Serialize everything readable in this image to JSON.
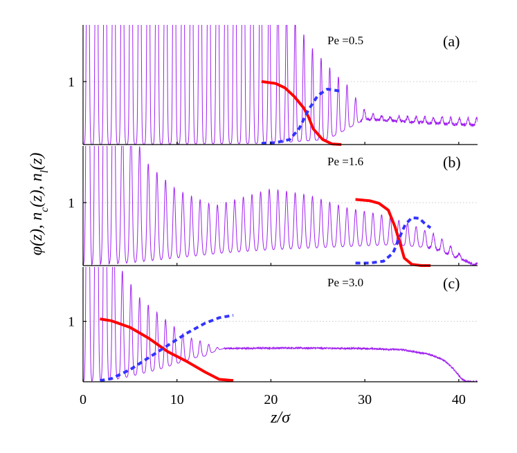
{
  "figure": {
    "ylabel": "φ(z),  n_c(z),  n_l(z)",
    "xlabel": "z/σ"
  },
  "colors": {
    "phi": "#a020f0",
    "nc": "#ff0000",
    "nl": "#3333ff"
  },
  "chart_data": [
    {
      "type": "line",
      "panel": "(a)",
      "annotation": "Pe =0.5",
      "xlim": [
        0,
        42
      ],
      "ylim": [
        0,
        1.9
      ],
      "yticks": [
        1
      ],
      "ytick_labels": [
        "1"
      ],
      "reference_line_y": 1,
      "series": [
        {
          "name": "phi(z)",
          "kind": "oscillatory_density",
          "period": 0.92,
          "width": 0.1,
          "peak_envelope": [
            [
              0,
              9
            ],
            [
              17,
              9
            ],
            [
              20,
              2.8
            ],
            [
              24,
              1.6
            ],
            [
              27,
              1.1
            ],
            [
              28.5,
              0.9
            ],
            [
              29.5,
              0.6
            ],
            [
              30.5,
              0.5
            ],
            [
              32,
              0.45
            ],
            [
              42,
              0.42
            ]
          ],
          "base_envelope": [
            [
              0,
              0
            ],
            [
              20,
              0.02
            ],
            [
              26,
              0.08
            ],
            [
              28.5,
              0.28
            ],
            [
              30,
              0.4
            ],
            [
              42,
              0.3
            ]
          ],
          "noise_start": 29.5,
          "noise_amp": 0.025
        },
        {
          "name": "n_c(z)",
          "style": "solid",
          "points": [
            [
              19,
              1.0
            ],
            [
              20.5,
              0.97
            ],
            [
              21.5,
              0.9
            ],
            [
              22.5,
              0.76
            ],
            [
              23.5,
              0.58
            ],
            [
              24,
              0.44
            ],
            [
              24.5,
              0.25
            ],
            [
              25.5,
              0.08
            ],
            [
              26.5,
              0.01
            ],
            [
              27.5,
              0.0
            ]
          ]
        },
        {
          "name": "n_l(z)",
          "style": "dashed",
          "points": [
            [
              19,
              0.02
            ],
            [
              20.5,
              0.03
            ],
            [
              22,
              0.08
            ],
            [
              23,
              0.25
            ],
            [
              24,
              0.55
            ],
            [
              25,
              0.78
            ],
            [
              26,
              0.88
            ],
            [
              26.5,
              0.87
            ],
            [
              27.3,
              0.85
            ]
          ]
        }
      ]
    },
    {
      "type": "line",
      "panel": "(b)",
      "annotation": "Pe =1.6",
      "xlim": [
        0,
        42
      ],
      "ylim": [
        0,
        1.9
      ],
      "yticks": [
        1
      ],
      "ytick_labels": [
        "1"
      ],
      "reference_line_y": 1,
      "series": [
        {
          "name": "phi(z)",
          "kind": "oscillatory_density",
          "period": 0.92,
          "width": 0.13,
          "peak_envelope": [
            [
              0,
              9
            ],
            [
              2,
              9
            ],
            [
              4,
              2.5
            ],
            [
              7,
              1.6
            ],
            [
              10,
              1.2
            ],
            [
              14,
              0.95
            ],
            [
              20,
              1.22
            ],
            [
              24,
              1.12
            ],
            [
              28,
              0.92
            ],
            [
              32,
              0.8
            ],
            [
              35,
              0.65
            ],
            [
              38,
              0.45
            ],
            [
              40,
              0.2
            ],
            [
              41,
              0.05
            ],
            [
              42,
              0.03
            ]
          ],
          "base_envelope": [
            [
              0,
              0
            ],
            [
              5,
              0.04
            ],
            [
              10,
              0.12
            ],
            [
              15,
              0.2
            ],
            [
              20,
              0.25
            ],
            [
              28,
              0.3
            ],
            [
              33,
              0.33
            ],
            [
              37,
              0.28
            ],
            [
              40,
              0.12
            ],
            [
              41.5,
              0.02
            ],
            [
              42,
              0.0
            ]
          ],
          "noise_start": 36.5,
          "noise_amp": 0.02
        },
        {
          "name": "n_c(z)",
          "style": "solid",
          "points": [
            [
              29,
              1.05
            ],
            [
              30.5,
              1.03
            ],
            [
              31.5,
              0.99
            ],
            [
              32.5,
              0.88
            ],
            [
              33.2,
              0.62
            ],
            [
              33.8,
              0.33
            ],
            [
              34.2,
              0.12
            ],
            [
              35,
              0.02
            ],
            [
              36,
              0.0
            ],
            [
              37,
              0.0
            ]
          ]
        },
        {
          "name": "n_l(z)",
          "style": "dashed",
          "points": [
            [
              29,
              0.04
            ],
            [
              30.5,
              0.04
            ],
            [
              32,
              0.07
            ],
            [
              33,
              0.2
            ],
            [
              33.7,
              0.45
            ],
            [
              34.3,
              0.65
            ],
            [
              35,
              0.76
            ],
            [
              35.8,
              0.75
            ],
            [
              36.5,
              0.65
            ],
            [
              37,
              0.6
            ]
          ]
        }
      ]
    },
    {
      "type": "line",
      "panel": "(c)",
      "annotation": "Pe =3.0",
      "xlim": [
        0,
        42
      ],
      "ylim": [
        0,
        1.9
      ],
      "yticks": [
        1
      ],
      "ytick_labels": [
        "1"
      ],
      "reference_line_y": 1,
      "series": [
        {
          "name": "phi(z)",
          "kind": "oscillatory_density",
          "period": 0.92,
          "width": 0.12,
          "peak_envelope": [
            [
              0,
              9
            ],
            [
              2,
              9
            ],
            [
              3.5,
              2.0
            ],
            [
              6,
              1.4
            ],
            [
              9,
              1.0
            ],
            [
              11,
              0.75
            ],
            [
              13,
              0.65
            ],
            [
              14.5,
              0.6
            ],
            [
              16,
              0.56
            ]
          ],
          "base_envelope": [
            [
              0,
              0
            ],
            [
              4,
              0.05
            ],
            [
              8,
              0.2
            ],
            [
              12,
              0.4
            ],
            [
              16,
              0.5
            ]
          ],
          "tail_profile": [
            [
              15,
              0.55
            ],
            [
              22,
              0.56
            ],
            [
              30,
              0.55
            ],
            [
              34,
              0.53
            ],
            [
              37,
              0.45
            ],
            [
              38.5,
              0.35
            ],
            [
              39.5,
              0.2
            ],
            [
              40.3,
              0.05
            ],
            [
              40.8,
              0.0
            ],
            [
              42,
              0.0
            ]
          ],
          "noise_start": 15,
          "noise_amp": 0.015
        },
        {
          "name": "n_c(z)",
          "style": "solid",
          "points": [
            [
              1.8,
              1.04
            ],
            [
              3,
              1.01
            ],
            [
              5,
              0.9
            ],
            [
              7,
              0.72
            ],
            [
              9,
              0.5
            ],
            [
              11,
              0.34
            ],
            [
              13,
              0.16
            ],
            [
              14.5,
              0.04
            ],
            [
              16,
              0.02
            ]
          ]
        },
        {
          "name": "n_l(z)",
          "style": "dashed",
          "points": [
            [
              1.8,
              0.02
            ],
            [
              3,
              0.05
            ],
            [
              5,
              0.2
            ],
            [
              7,
              0.4
            ],
            [
              9,
              0.6
            ],
            [
              11,
              0.8
            ],
            [
              13,
              0.97
            ],
            [
              14.5,
              1.06
            ],
            [
              16,
              1.1
            ]
          ]
        }
      ]
    }
  ],
  "x_axis": {
    "ticks": [
      0,
      10,
      20,
      30,
      40
    ],
    "tick_labels": [
      "0",
      "10",
      "20",
      "30",
      "40"
    ]
  }
}
